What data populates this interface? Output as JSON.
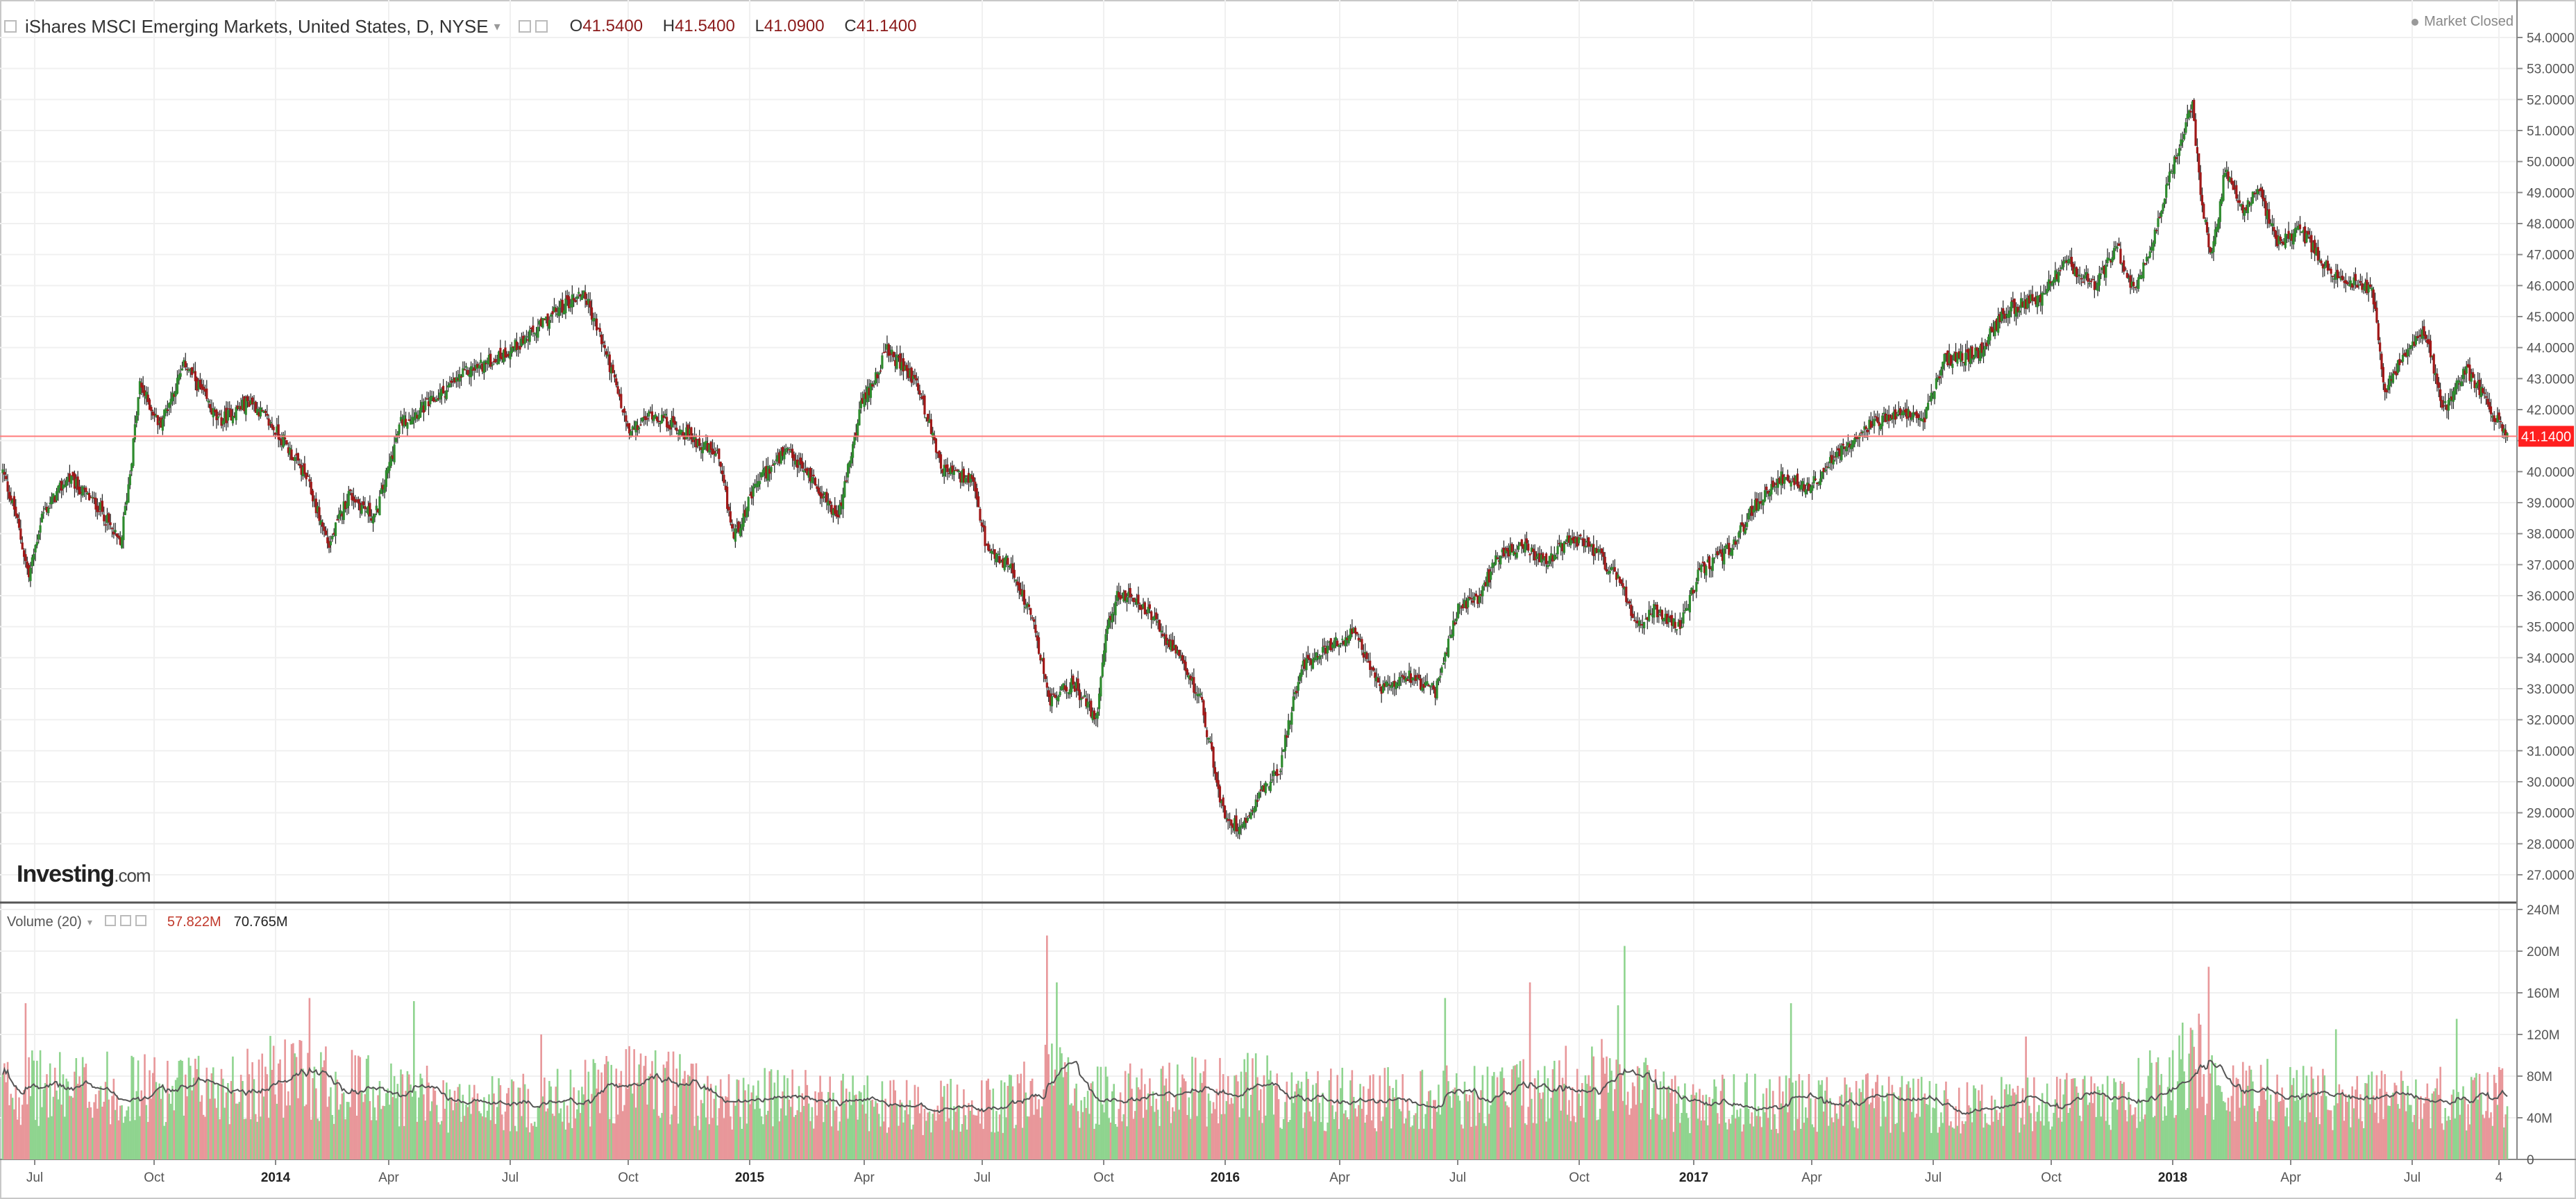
{
  "header": {
    "title": "iShares MSCI Emerging Markets, United States, D, NYSE",
    "open_label": "O",
    "open": "41.5400",
    "high_label": "H",
    "high": "41.5400",
    "low_label": "L",
    "low": "41.0900",
    "close_label": "C",
    "close": "41.1400"
  },
  "status": "Market Closed",
  "logo": {
    "main": "Investing",
    "suffix": ".com"
  },
  "volume_header": {
    "label": "Volume (20)",
    "value1": "57.822M",
    "value2": "70.765M"
  },
  "last_price_label": "41.1400",
  "colors": {
    "up": "#2e8b2e",
    "down": "#a01818",
    "vol_up": "#8fd48f",
    "vol_down": "#e8979a",
    "last_line": "#ff7b7b",
    "badge": "#ff1f1f",
    "ma": "#555555"
  },
  "chart_data": {
    "type": "candlestick",
    "price_axis": {
      "min": 27,
      "max": 54,
      "ticks": [
        "54.0000",
        "53.0000",
        "52.0000",
        "51.0000",
        "50.0000",
        "49.0000",
        "48.0000",
        "47.0000",
        "46.0000",
        "45.0000",
        "44.0000",
        "43.0000",
        "42.0000",
        "41.0000",
        "40.0000",
        "39.0000",
        "38.0000",
        "37.0000",
        "36.0000",
        "35.0000",
        "34.0000",
        "33.0000",
        "32.0000",
        "31.0000",
        "30.0000",
        "29.0000",
        "28.0000",
        "27.0000"
      ]
    },
    "volume_axis": {
      "min": 0,
      "max": 240,
      "ticks": [
        "240M",
        "200M",
        "160M",
        "120M",
        "80M",
        "40M",
        "0"
      ]
    },
    "time_labels": [
      "Jul",
      "Oct",
      "2014",
      "Apr",
      "Jul",
      "Oct",
      "2015",
      "Apr",
      "Jul",
      "Oct",
      "2016",
      "Apr",
      "Jul",
      "Oct",
      "2017",
      "Apr",
      "Jul",
      "Oct",
      "2018",
      "Apr",
      "Jul",
      "4"
    ],
    "last_price": 41.14,
    "price_keypoints": [
      [
        0,
        40.0
      ],
      [
        8,
        38.6
      ],
      [
        16,
        36.6
      ],
      [
        24,
        38.6
      ],
      [
        40,
        39.8
      ],
      [
        60,
        38.8
      ],
      [
        72,
        37.6
      ],
      [
        78,
        40.0
      ],
      [
        84,
        42.8
      ],
      [
        96,
        41.5
      ],
      [
        112,
        43.5
      ],
      [
        132,
        41.6
      ],
      [
        152,
        42.3
      ],
      [
        172,
        41.0
      ],
      [
        186,
        39.8
      ],
      [
        200,
        37.6
      ],
      [
        212,
        39.3
      ],
      [
        228,
        38.5
      ],
      [
        244,
        41.6
      ],
      [
        262,
        42.2
      ],
      [
        284,
        43.2
      ],
      [
        304,
        43.7
      ],
      [
        324,
        44.4
      ],
      [
        342,
        45.3
      ],
      [
        356,
        45.8
      ],
      [
        370,
        43.8
      ],
      [
        384,
        41.2
      ],
      [
        398,
        41.9
      ],
      [
        420,
        41.2
      ],
      [
        438,
        40.5
      ],
      [
        448,
        37.9
      ],
      [
        464,
        39.8
      ],
      [
        480,
        40.6
      ],
      [
        496,
        39.8
      ],
      [
        512,
        38.5
      ],
      [
        526,
        42.1
      ],
      [
        542,
        43.9
      ],
      [
        560,
        42.9
      ],
      [
        576,
        40.1
      ],
      [
        594,
        39.7
      ],
      [
        604,
        37.3
      ],
      [
        618,
        37.0
      ],
      [
        632,
        35.0
      ],
      [
        642,
        32.6
      ],
      [
        656,
        33.2
      ],
      [
        670,
        32.0
      ],
      [
        676,
        34.8
      ],
      [
        684,
        36.1
      ],
      [
        700,
        35.6
      ],
      [
        716,
        34.4
      ],
      [
        734,
        32.7
      ],
      [
        748,
        29.0
      ],
      [
        758,
        28.5
      ],
      [
        772,
        29.8
      ],
      [
        782,
        30.3
      ],
      [
        796,
        33.8
      ],
      [
        812,
        34.3
      ],
      [
        828,
        34.8
      ],
      [
        844,
        33.0
      ],
      [
        860,
        33.5
      ],
      [
        878,
        32.9
      ],
      [
        892,
        35.6
      ],
      [
        904,
        35.9
      ],
      [
        918,
        37.4
      ],
      [
        932,
        37.6
      ],
      [
        946,
        37.0
      ],
      [
        962,
        37.9
      ],
      [
        978,
        37.3
      ],
      [
        992,
        36.4
      ],
      [
        1000,
        35.0
      ],
      [
        1012,
        35.6
      ],
      [
        1028,
        35.0
      ],
      [
        1040,
        36.8
      ],
      [
        1058,
        37.5
      ],
      [
        1074,
        38.9
      ],
      [
        1090,
        39.8
      ],
      [
        1108,
        39.5
      ],
      [
        1124,
        40.6
      ],
      [
        1140,
        41.4
      ],
      [
        1158,
        41.8
      ],
      [
        1178,
        41.8
      ],
      [
        1190,
        43.6
      ],
      [
        1210,
        43.8
      ],
      [
        1228,
        45.2
      ],
      [
        1248,
        45.6
      ],
      [
        1264,
        46.8
      ],
      [
        1282,
        46.0
      ],
      [
        1296,
        47.2
      ],
      [
        1306,
        45.8
      ],
      [
        1318,
        47.5
      ],
      [
        1328,
        49.5
      ],
      [
        1336,
        50.9
      ],
      [
        1342,
        51.8
      ],
      [
        1348,
        48.5
      ],
      [
        1354,
        46.9
      ],
      [
        1362,
        49.7
      ],
      [
        1374,
        48.4
      ],
      [
        1382,
        49.2
      ],
      [
        1394,
        47.4
      ],
      [
        1408,
        47.8
      ],
      [
        1424,
        46.6
      ],
      [
        1440,
        46.1
      ],
      [
        1452,
        45.9
      ],
      [
        1460,
        42.6
      ],
      [
        1472,
        43.8
      ],
      [
        1484,
        44.6
      ],
      [
        1496,
        42.0
      ],
      [
        1510,
        43.3
      ],
      [
        1524,
        42.1
      ],
      [
        1534,
        41.1
      ]
    ],
    "volume_keypoints": [
      [
        0,
        70
      ],
      [
        60,
        70
      ],
      [
        120,
        68
      ],
      [
        170,
        82
      ],
      [
        220,
        72
      ],
      [
        280,
        55
      ],
      [
        330,
        55
      ],
      [
        390,
        80
      ],
      [
        430,
        60
      ],
      [
        500,
        58
      ],
      [
        560,
        50
      ],
      [
        620,
        55
      ],
      [
        640,
        85
      ],
      [
        660,
        60
      ],
      [
        720,
        65
      ],
      [
        760,
        72
      ],
      [
        800,
        58
      ],
      [
        860,
        60
      ],
      [
        920,
        62
      ],
      [
        970,
        78
      ],
      [
        990,
        80
      ],
      [
        1020,
        55
      ],
      [
        1080,
        55
      ],
      [
        1140,
        58
      ],
      [
        1200,
        52
      ],
      [
        1260,
        55
      ],
      [
        1300,
        60
      ],
      [
        1340,
        95
      ],
      [
        1360,
        72
      ],
      [
        1400,
        62
      ],
      [
        1460,
        58
      ],
      [
        1500,
        60
      ],
      [
        1534,
        65
      ]
    ],
    "volume_spikes": [
      [
        640,
        215
      ],
      [
        646,
        170
      ],
      [
        994,
        205
      ],
      [
        990,
        148
      ],
      [
        1352,
        185
      ],
      [
        1346,
        140
      ],
      [
        936,
        170
      ],
      [
        884,
        155
      ],
      [
        1504,
        135
      ],
      [
        252,
        152
      ],
      [
        14,
        150
      ],
      [
        188,
        155
      ],
      [
        1430,
        125
      ],
      [
        1096,
        150
      ],
      [
        1240,
        118
      ],
      [
        330,
        120
      ]
    ]
  }
}
